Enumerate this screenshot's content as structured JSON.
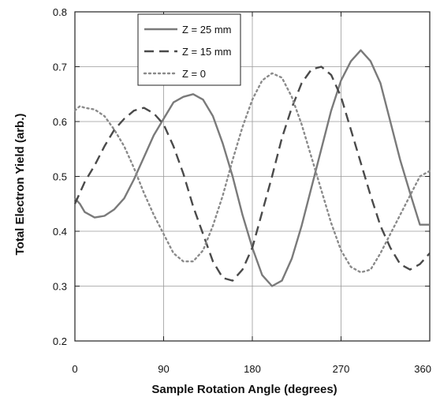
{
  "chart_data": {
    "type": "line",
    "xlabel": "Sample Rotation Angle (degrees)",
    "ylabel": "Total Electron Yield (arb.)",
    "xlim": [
      0,
      360
    ],
    "ylim": [
      0.2,
      0.8
    ],
    "xticks": [
      0,
      90,
      180,
      270,
      360
    ],
    "yticks": [
      0.2,
      0.3,
      0.4,
      0.5,
      0.6,
      0.7,
      0.8
    ],
    "xtick_labels": [
      "0",
      "90",
      "180",
      "270",
      "360"
    ],
    "ytick_labels": [
      "0.2",
      "0.3",
      "0.4",
      "0.5",
      "0.6",
      "0.7",
      "0.8"
    ],
    "grid": true,
    "legend_position": "top-left",
    "series": [
      {
        "name": "Z = 25 mm",
        "style": "solid",
        "color": "#7a7a7a",
        "x": [
          0,
          5,
          10,
          20,
          30,
          40,
          50,
          60,
          70,
          80,
          90,
          100,
          110,
          120,
          130,
          140,
          150,
          160,
          170,
          180,
          190,
          200,
          210,
          220,
          230,
          240,
          250,
          260,
          270,
          280,
          290,
          300,
          310,
          320,
          330,
          340,
          350,
          360
        ],
        "y": [
          0.46,
          0.45,
          0.435,
          0.425,
          0.428,
          0.44,
          0.46,
          0.495,
          0.535,
          0.575,
          0.605,
          0.635,
          0.645,
          0.65,
          0.64,
          0.61,
          0.56,
          0.5,
          0.43,
          0.37,
          0.32,
          0.3,
          0.31,
          0.35,
          0.41,
          0.48,
          0.55,
          0.62,
          0.675,
          0.71,
          0.73,
          0.71,
          0.67,
          0.6,
          0.53,
          0.47,
          0.412,
          0.412
        ]
      },
      {
        "name": "Z = 15 mm",
        "style": "dashed",
        "color": "#4a4a4a",
        "x": [
          0,
          10,
          20,
          30,
          40,
          50,
          60,
          70,
          80,
          90,
          100,
          110,
          120,
          130,
          140,
          150,
          160,
          170,
          180,
          190,
          200,
          210,
          220,
          230,
          240,
          250,
          260,
          270,
          280,
          290,
          300,
          310,
          320,
          330,
          340,
          350,
          360
        ],
        "y": [
          0.45,
          0.49,
          0.52,
          0.555,
          0.585,
          0.605,
          0.62,
          0.625,
          0.615,
          0.595,
          0.555,
          0.505,
          0.445,
          0.395,
          0.345,
          0.315,
          0.31,
          0.33,
          0.37,
          0.435,
          0.5,
          0.57,
          0.625,
          0.67,
          0.695,
          0.7,
          0.685,
          0.645,
          0.585,
          0.525,
          0.465,
          0.41,
          0.37,
          0.34,
          0.33,
          0.34,
          0.36
        ]
      },
      {
        "name": "Z = 0",
        "style": "dotted",
        "color": "#8a8a8a",
        "x": [
          0,
          5,
          10,
          20,
          30,
          40,
          50,
          60,
          70,
          80,
          90,
          100,
          110,
          120,
          130,
          140,
          150,
          160,
          170,
          180,
          190,
          200,
          210,
          220,
          230,
          240,
          250,
          260,
          270,
          280,
          290,
          300,
          310,
          320,
          330,
          340,
          350,
          360
        ],
        "y": [
          0.62,
          0.628,
          0.625,
          0.622,
          0.61,
          0.585,
          0.555,
          0.515,
          0.47,
          0.43,
          0.395,
          0.36,
          0.345,
          0.345,
          0.365,
          0.41,
          0.465,
          0.53,
          0.59,
          0.64,
          0.675,
          0.688,
          0.68,
          0.645,
          0.595,
          0.535,
          0.475,
          0.415,
          0.365,
          0.335,
          0.325,
          0.33,
          0.36,
          0.395,
          0.43,
          0.465,
          0.5,
          0.51
        ]
      }
    ]
  }
}
